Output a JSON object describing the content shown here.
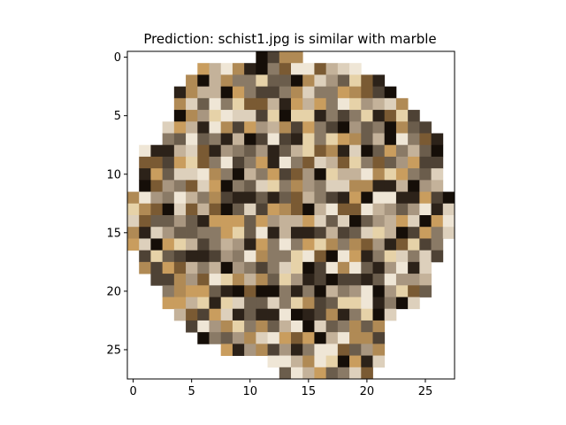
{
  "chart_data": {
    "type": "heatmap",
    "title": "Prediction: schist1.jpg is similar with marble",
    "xlabel": "",
    "ylabel": "",
    "grid": false,
    "y_inverted": true,
    "xlim": [
      -0.5,
      27.5
    ],
    "ylim": [
      27.5,
      -0.5
    ],
    "x_ticks": [
      0,
      5,
      10,
      15,
      20,
      25
    ],
    "y_ticks": [
      0,
      5,
      10,
      15,
      20,
      25
    ],
    "x_tick_labels": [
      "0",
      "5",
      "10",
      "15",
      "20",
      "25"
    ],
    "y_tick_labels": [
      "0",
      "5",
      "10",
      "15",
      "20",
      "25"
    ],
    "image_size": [
      28,
      28
    ],
    "background_color": "#ffffff",
    "row_extents": [
      [
        11,
        14
      ],
      [
        6,
        19
      ],
      [
        5,
        21
      ],
      [
        4,
        22
      ],
      [
        4,
        23
      ],
      [
        4,
        24
      ],
      [
        3,
        25
      ],
      [
        3,
        26
      ],
      [
        1,
        26
      ],
      [
        1,
        26
      ],
      [
        1,
        26
      ],
      [
        1,
        26
      ],
      [
        0,
        27
      ],
      [
        0,
        27
      ],
      [
        0,
        27
      ],
      [
        0,
        27
      ],
      [
        0,
        26
      ],
      [
        1,
        26
      ],
      [
        1,
        25
      ],
      [
        2,
        25
      ],
      [
        3,
        25
      ],
      [
        3,
        24
      ],
      [
        4,
        22
      ],
      [
        5,
        21
      ],
      [
        6,
        21
      ],
      [
        8,
        21
      ],
      [
        12,
        21
      ],
      [
        13,
        20
      ]
    ],
    "palette": [
      "#2c2219",
      "#4e4235",
      "#6b5d4c",
      "#8a7a66",
      "#a89680",
      "#c4b29a",
      "#ddd0bc",
      "#efe6d6",
      "#b08a55",
      "#c99d5e",
      "#7a5a33",
      "#150e08",
      "#e6d2a8"
    ],
    "pixel_seed": 1729
  }
}
